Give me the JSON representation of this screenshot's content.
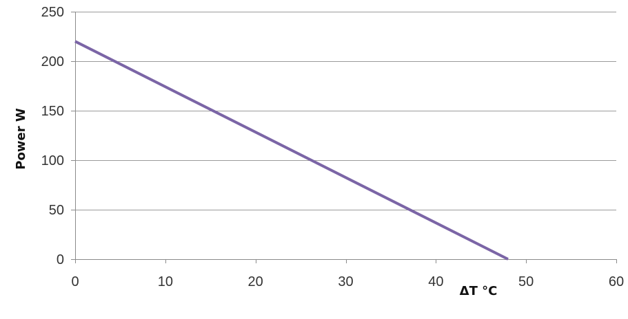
{
  "chart_data": {
    "type": "line",
    "title": "",
    "xlabel": "ΔT °C",
    "ylabel": "Power W",
    "xlim": [
      0,
      60
    ],
    "ylim": [
      0,
      250
    ],
    "x_ticks": [
      0,
      10,
      20,
      30,
      40,
      50,
      60
    ],
    "y_ticks": [
      0,
      50,
      100,
      150,
      200,
      250
    ],
    "grid": "horizontal",
    "legend": "none",
    "series": [
      {
        "color": "#7b65a6",
        "x": [
          0,
          48
        ],
        "y": [
          220,
          0
        ]
      }
    ]
  }
}
